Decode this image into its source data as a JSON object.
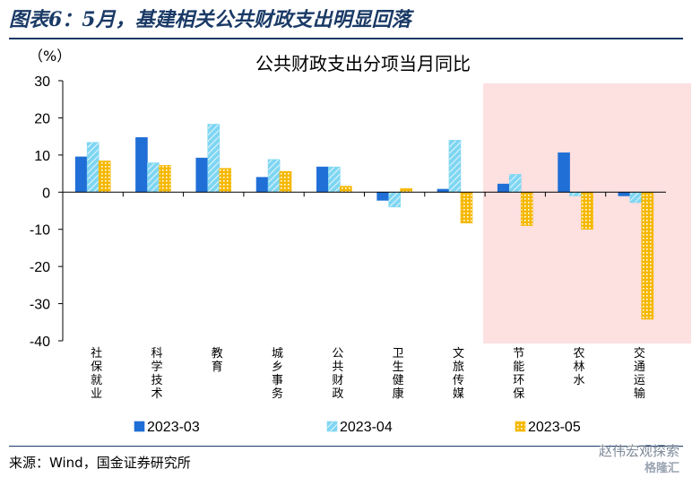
{
  "figure_title": "图表6：5月，基建相关公共财政支出明显回落",
  "source": "来源：Wind，国金证券研究所",
  "watermark": "赵伟宏观探索",
  "watermark_logo": "格隆汇",
  "colors": {
    "title": "#1a3a66",
    "series_2023_03": "#1f6fd6",
    "series_2023_04": "#7fd6f2",
    "series_2023_05": "#f5b800",
    "highlight": "#fde0e0"
  },
  "chart_data": {
    "type": "bar",
    "title": "公共财政支出分项当月同比",
    "ylabel": "（%）",
    "ylim": [
      -40,
      30
    ],
    "yticks": [
      30,
      20,
      10,
      0,
      -10,
      -20,
      -30,
      -40
    ],
    "categories": [
      "社保就业",
      "科学技术",
      "教育",
      "城乡事务",
      "公共财政",
      "卫生健康",
      "文旅传媒",
      "节能环保",
      "农林水",
      "交通运输"
    ],
    "series": [
      {
        "name": "2023-03",
        "values": [
          9.5,
          14.7,
          9.2,
          4.0,
          6.8,
          -2.2,
          0.8,
          2.2,
          10.6,
          -1.0
        ]
      },
      {
        "name": "2023-04",
        "values": [
          13.4,
          7.9,
          18.3,
          8.8,
          6.8,
          -4.0,
          14.0,
          4.8,
          -1.0,
          -2.8
        ]
      },
      {
        "name": "2023-05",
        "values": [
          8.4,
          7.2,
          6.4,
          5.6,
          1.6,
          1.0,
          -8.3,
          -9.0,
          -10.0,
          -34.2
        ]
      }
    ],
    "highlight_categories": [
      "节能环保",
      "农林水",
      "交通运输"
    ],
    "grid": false,
    "legend_position": "bottom"
  }
}
